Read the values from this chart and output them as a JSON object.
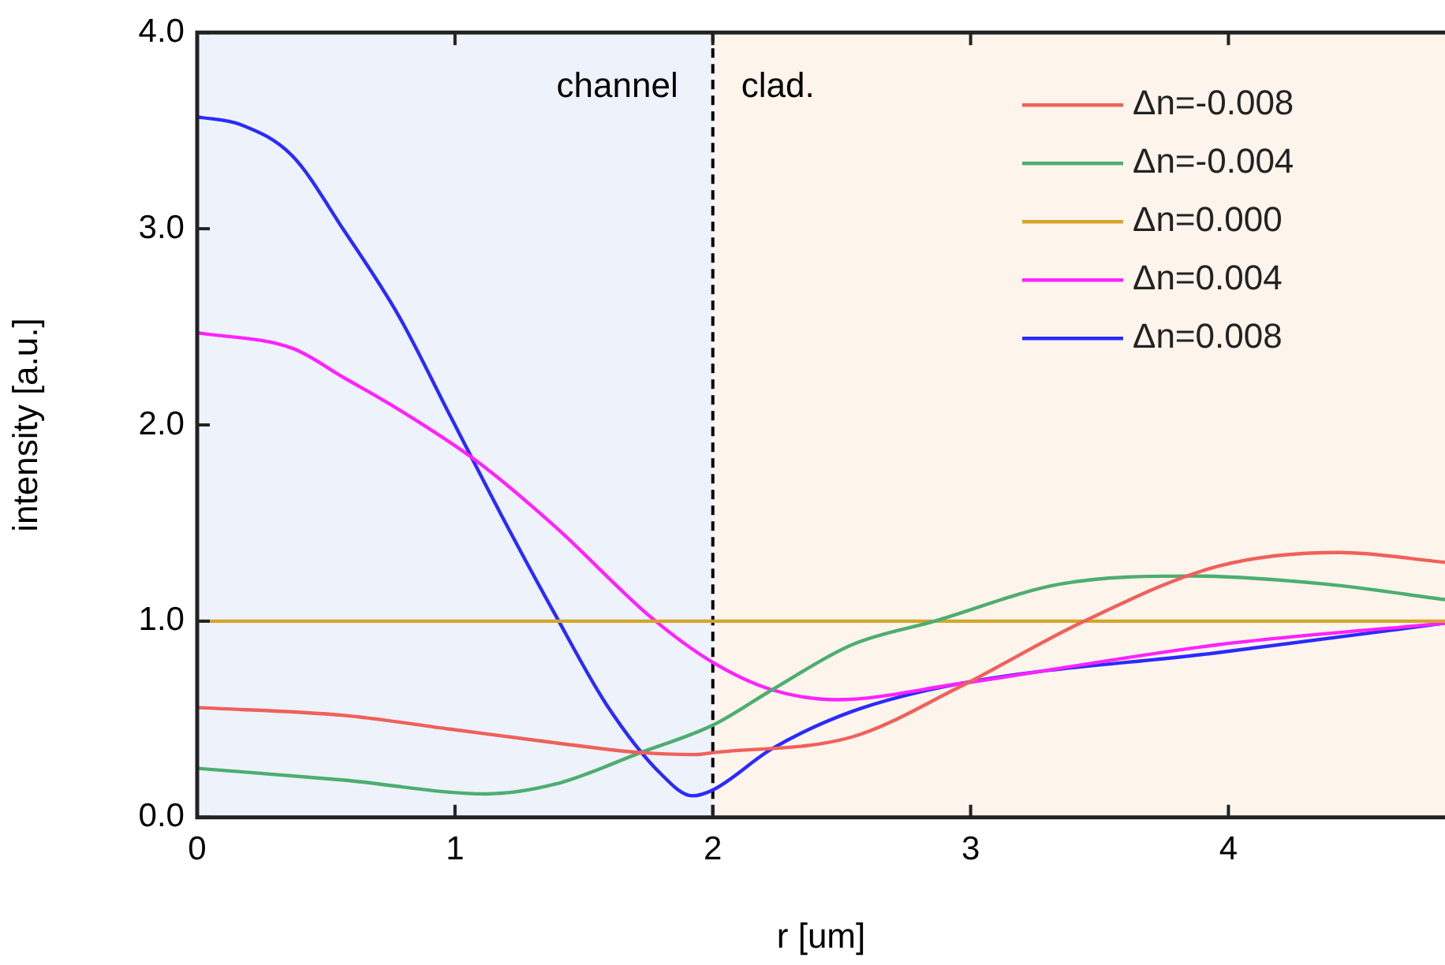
{
  "chart_data": {
    "type": "line",
    "xlabel": "r [um]",
    "ylabel": "intensity [a.u.]",
    "xlim": [
      0,
      4.84
    ],
    "xticks": [
      0,
      1,
      2,
      3,
      4
    ],
    "ylim": [
      0,
      4
    ],
    "yticks": [
      {
        "value": 0,
        "label": "0.0"
      },
      {
        "value": 1,
        "label": "1.0"
      },
      {
        "value": 2,
        "label": "2.0"
      },
      {
        "value": 3,
        "label": "3.0"
      },
      {
        "value": 4,
        "label": "4.0"
      }
    ],
    "grid": false,
    "legend": "top right",
    "marker": "none",
    "line_style": "solid",
    "bands": [
      {
        "axis": "x",
        "from": 0,
        "to": 2,
        "label": "channel",
        "color": "#eef2fa"
      },
      {
        "axis": "x",
        "from": 2,
        "to": 4.84,
        "label": "clad.",
        "color": "#fdf4ec"
      }
    ],
    "ref_lines": [
      {
        "axis": "x",
        "value": 2,
        "color": "#000000",
        "line_style": "dashed"
      }
    ],
    "series": [
      {
        "name": "Δn=-0.008",
        "color": "#f0605a",
        "x": [
          0,
          0.57,
          0.98,
          1.39,
          1.72,
          1.93,
          2.0,
          2.54,
          2.95,
          3.44,
          3.96,
          4.43,
          4.84
        ],
        "values": [
          0.56,
          0.52,
          0.45,
          0.38,
          0.33,
          0.32,
          0.33,
          0.41,
          0.66,
          1.0,
          1.28,
          1.35,
          1.3
        ]
      },
      {
        "name": "Δn=-0.004",
        "color": "#4cae70",
        "x": [
          0,
          0.57,
          1.12,
          1.39,
          1.72,
          2.0,
          2.23,
          2.54,
          2.86,
          3.35,
          3.86,
          4.37,
          4.84
        ],
        "values": [
          0.25,
          0.19,
          0.12,
          0.17,
          0.33,
          0.47,
          0.65,
          0.88,
          1.0,
          1.19,
          1.23,
          1.19,
          1.11
        ]
      },
      {
        "name": "Δn=0.000",
        "color": "#d4a52a",
        "x": [
          0,
          4.84
        ],
        "values": [
          1.0,
          1.0
        ]
      },
      {
        "name": "Δn=0.004",
        "color": "#ff22ff",
        "x": [
          0,
          0.37,
          0.57,
          0.78,
          1.09,
          1.39,
          1.76,
          2.0,
          2.23,
          2.48,
          2.95,
          3.96,
          4.84
        ],
        "values": [
          2.47,
          2.39,
          2.24,
          2.08,
          1.81,
          1.48,
          1.02,
          0.79,
          0.65,
          0.6,
          0.68,
          0.88,
          0.99
        ]
      },
      {
        "name": "Δn=0.008",
        "color": "#2a2aff",
        "x": [
          0,
          0.17,
          0.37,
          0.57,
          0.78,
          0.98,
          1.18,
          1.39,
          1.59,
          1.8,
          1.92,
          2.0,
          2.23,
          2.54,
          2.95,
          3.96,
          4.84
        ],
        "values": [
          3.57,
          3.53,
          3.37,
          2.99,
          2.56,
          2.05,
          1.54,
          1.03,
          0.57,
          0.22,
          0.11,
          0.14,
          0.35,
          0.54,
          0.68,
          0.84,
          0.99
        ]
      }
    ]
  }
}
